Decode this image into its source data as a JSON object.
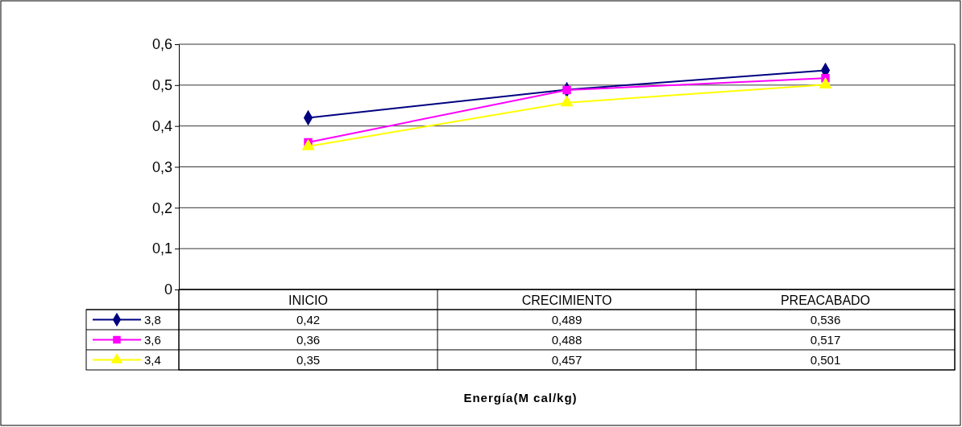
{
  "chart_data": {
    "type": "line",
    "annotations": [
      "Energía(M cal/kg)"
    ],
    "categories": [
      "INICIO",
      "CRECIMIENTO",
      "PREACABADO"
    ],
    "series": [
      {
        "name": "3,8",
        "color": "#000080",
        "marker": "diamond",
        "values": [
          0.42,
          0.489,
          0.536
        ],
        "value_labels": [
          "0,42",
          "0,489",
          "0,536"
        ]
      },
      {
        "name": "3,6",
        "color": "#ff00ff",
        "marker": "square",
        "values": [
          0.36,
          0.488,
          0.517
        ],
        "value_labels": [
          "0,36",
          "0,488",
          "0,517"
        ]
      },
      {
        "name": "3,4",
        "color": "#ffff00",
        "marker": "triangle",
        "values": [
          0.35,
          0.457,
          0.501
        ],
        "value_labels": [
          "0,35",
          "0,457",
          "0,501"
        ]
      }
    ],
    "ylim": [
      0,
      0.6
    ],
    "yticks": [
      {
        "value": 0,
        "label": "0"
      },
      {
        "value": 0.1,
        "label": "0,1"
      },
      {
        "value": 0.2,
        "label": "0,2"
      },
      {
        "value": 0.3,
        "label": "0,3"
      },
      {
        "value": 0.4,
        "label": "0,4"
      },
      {
        "value": 0.5,
        "label": "0,5"
      },
      {
        "value": 0.6,
        "label": "0,6"
      }
    ],
    "grid": "y",
    "legend": "bottom left",
    "line_style": "solid"
  }
}
